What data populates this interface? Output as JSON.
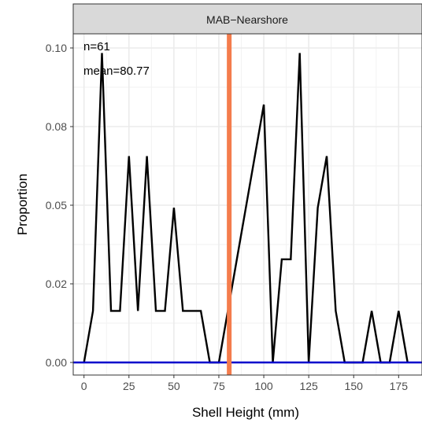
{
  "chart_data": {
    "type": "line",
    "facet_label": "MAB−Nearshore",
    "xlabel": "Shell Height (mm)",
    "ylabel": "Proportion",
    "xlim": [
      -6,
      188
    ],
    "ylim": [
      -0.004,
      0.1045
    ],
    "x_ticks": [
      0,
      25,
      50,
      75,
      100,
      125,
      150,
      175
    ],
    "y_ticks": [
      0.0,
      0.025,
      0.05,
      0.075,
      0.1
    ],
    "x_tick_labels": [
      "0",
      "25",
      "50",
      "75",
      "100",
      "125",
      "150",
      "175"
    ],
    "y_tick_labels": [
      "0.00",
      "0.02",
      "0.05",
      "0.08",
      "0.10"
    ],
    "grid": true,
    "series": [
      {
        "color": "#000000",
        "x": [
          0,
          5,
          10,
          15,
          20,
          25,
          30,
          35,
          40,
          45,
          50,
          55,
          60,
          65,
          70,
          75,
          100,
          105,
          110,
          115,
          120,
          125,
          130,
          135,
          140,
          145,
          150,
          155,
          160,
          165,
          170,
          175,
          180
        ],
        "y": [
          0,
          0.0164,
          0.0984,
          0.0164,
          0.0164,
          0.0656,
          0.0164,
          0.0656,
          0.0164,
          0.0164,
          0.0492,
          0.0164,
          0.0164,
          0.0164,
          0,
          0,
          0.082,
          0,
          0.0328,
          0.0328,
          0.0984,
          0,
          0.0492,
          0.0656,
          0.0164,
          0,
          0,
          0,
          0.0164,
          0,
          0,
          0.0164,
          0
        ]
      }
    ],
    "mean_line": {
      "x": 80.77,
      "color": "#f47c4c"
    },
    "baseline": {
      "y": 0,
      "color": "#0000cc"
    },
    "annotations": [
      "n=61",
      "mean=80.77"
    ]
  }
}
